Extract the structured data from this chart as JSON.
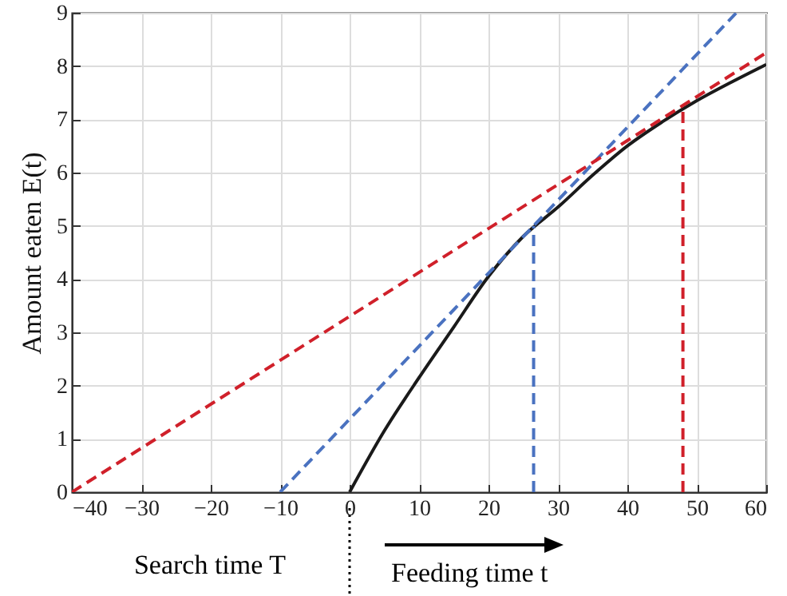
{
  "chart_data": {
    "type": "line",
    "ylabel": "Amount eaten E(t)",
    "xlim": [
      -40,
      60
    ],
    "ylim": [
      0,
      9
    ],
    "xticks": [
      -40,
      -30,
      -20,
      -10,
      0,
      10,
      20,
      30,
      40,
      50,
      60
    ],
    "yticks": [
      0,
      1,
      2,
      3,
      4,
      5,
      6,
      7,
      8,
      9
    ],
    "grid": true,
    "annotations": [
      "Search time T",
      "Feeding time t"
    ],
    "series": [
      {
        "color": "#1a1a1a",
        "line_style": "solid",
        "x": [
          0,
          5,
          10,
          15,
          20,
          25,
          30,
          35,
          40,
          45,
          50,
          55,
          60
        ],
        "values": [
          0,
          1.15,
          2.15,
          3.1,
          4.05,
          4.8,
          5.35,
          5.95,
          6.5,
          6.95,
          7.35,
          7.7,
          8.03
        ]
      },
      {
        "color": "#4a72c0",
        "line_style": "dashed",
        "x": [
          -10,
          55.7
        ],
        "values": [
          0,
          9
        ]
      },
      {
        "color": "#d0202a",
        "line_style": "dashed",
        "x": [
          -40,
          60
        ],
        "values": [
          0,
          8.25
        ]
      },
      {
        "color": "#4a72c0",
        "line_style": "dashed",
        "x": [
          26.5,
          26.5
        ],
        "values": [
          0,
          5
        ]
      },
      {
        "color": "#d0202a",
        "line_style": "dashed",
        "x": [
          48,
          48
        ],
        "values": [
          0,
          7.25
        ]
      }
    ]
  }
}
